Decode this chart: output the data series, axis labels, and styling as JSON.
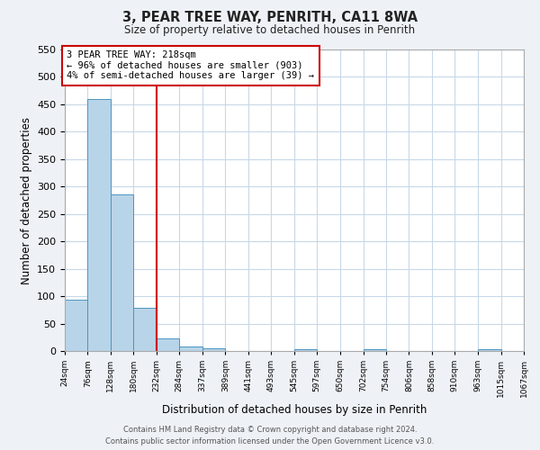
{
  "title": "3, PEAR TREE WAY, PENRITH, CA11 8WA",
  "subtitle": "Size of property relative to detached houses in Penrith",
  "xlabel": "Distribution of detached houses by size in Penrith",
  "ylabel": "Number of detached properties",
  "bin_edges": [
    24,
    76,
    128,
    180,
    232,
    284,
    337,
    389,
    441,
    493,
    545,
    597,
    650,
    702,
    754,
    806,
    858,
    910,
    963,
    1015,
    1067
  ],
  "bar_heights": [
    93,
    460,
    285,
    78,
    23,
    9,
    5,
    0,
    0,
    0,
    4,
    0,
    0,
    4,
    0,
    0,
    0,
    0,
    4,
    0
  ],
  "bar_color": "#b8d4e8",
  "bar_edge_color": "#4d94c1",
  "vline_color": "#cc0000",
  "vline_x": 232,
  "annotation_title": "3 PEAR TREE WAY: 218sqm",
  "annotation_line1": "← 96% of detached houses are smaller (903)",
  "annotation_line2": "4% of semi-detached houses are larger (39) →",
  "annotation_box_color": "#cc0000",
  "ylim": [
    0,
    550
  ],
  "yticks": [
    0,
    50,
    100,
    150,
    200,
    250,
    300,
    350,
    400,
    450,
    500,
    550
  ],
  "footer_line1": "Contains HM Land Registry data © Crown copyright and database right 2024.",
  "footer_line2": "Contains public sector information licensed under the Open Government Licence v3.0.",
  "bg_color": "#eef2f7",
  "plot_bg_color": "#ffffff",
  "grid_color": "#c8d8e8"
}
